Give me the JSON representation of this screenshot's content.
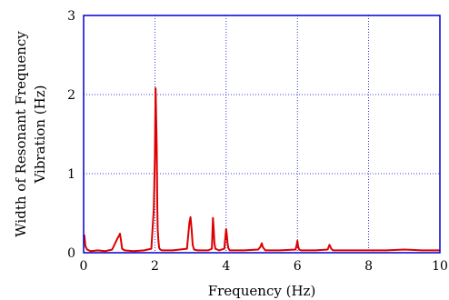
{
  "chart_data": {
    "type": "line",
    "title": "",
    "xlabel": "Frequency (Hz)",
    "ylabel_lines": [
      "Width of Resonant Frequency",
      "Vibration (Hz)"
    ],
    "xlim": [
      0,
      10
    ],
    "ylim": [
      0,
      3
    ],
    "x_ticks": [
      0,
      2,
      4,
      6,
      8,
      10
    ],
    "y_ticks": [
      0,
      1,
      2,
      3
    ],
    "x_tick_labels": [
      "0",
      "2",
      "4",
      "6",
      "8",
      "10"
    ],
    "y_tick_labels": [
      "0",
      "1",
      "2",
      "3"
    ],
    "grid": true,
    "colors": {
      "series": "#dd0000",
      "frame": "#0000cc",
      "grid": "#0000cc"
    },
    "series": [
      {
        "x": [
          0.0,
          0.02,
          0.05,
          0.1,
          0.2,
          0.4,
          0.6,
          0.8,
          0.95,
          1.0,
          1.02,
          1.05,
          1.08,
          1.15,
          1.4,
          1.7,
          1.9,
          1.97,
          2.0,
          2.02,
          2.04,
          2.05,
          2.06,
          2.07,
          2.08,
          2.1,
          2.12,
          2.15,
          2.2,
          2.5,
          2.9,
          2.97,
          3.0,
          3.03,
          3.06,
          3.1,
          3.2,
          3.5,
          3.6,
          3.63,
          3.65,
          3.67,
          3.7,
          3.8,
          3.95,
          3.98,
          4.0,
          4.02,
          4.04,
          4.06,
          4.1,
          4.5,
          4.9,
          4.97,
          5.0,
          5.03,
          5.1,
          5.5,
          5.95,
          5.98,
          6.0,
          6.02,
          6.05,
          6.1,
          6.5,
          6.85,
          6.9,
          6.92,
          6.95,
          7.0,
          7.5,
          8.0,
          8.5,
          9.0,
          9.5,
          10.0
        ],
        "y": [
          0.2,
          0.22,
          0.08,
          0.04,
          0.02,
          0.03,
          0.02,
          0.04,
          0.18,
          0.22,
          0.24,
          0.15,
          0.05,
          0.03,
          0.02,
          0.03,
          0.05,
          0.55,
          1.2,
          2.08,
          1.6,
          1.35,
          0.9,
          0.55,
          0.3,
          0.15,
          0.06,
          0.04,
          0.03,
          0.03,
          0.05,
          0.38,
          0.45,
          0.3,
          0.1,
          0.04,
          0.03,
          0.03,
          0.05,
          0.44,
          0.3,
          0.12,
          0.05,
          0.03,
          0.05,
          0.2,
          0.3,
          0.22,
          0.12,
          0.06,
          0.03,
          0.03,
          0.04,
          0.08,
          0.12,
          0.07,
          0.03,
          0.03,
          0.04,
          0.1,
          0.15,
          0.08,
          0.04,
          0.03,
          0.03,
          0.04,
          0.1,
          0.08,
          0.05,
          0.03,
          0.03,
          0.03,
          0.03,
          0.04,
          0.03,
          0.03
        ]
      }
    ]
  }
}
